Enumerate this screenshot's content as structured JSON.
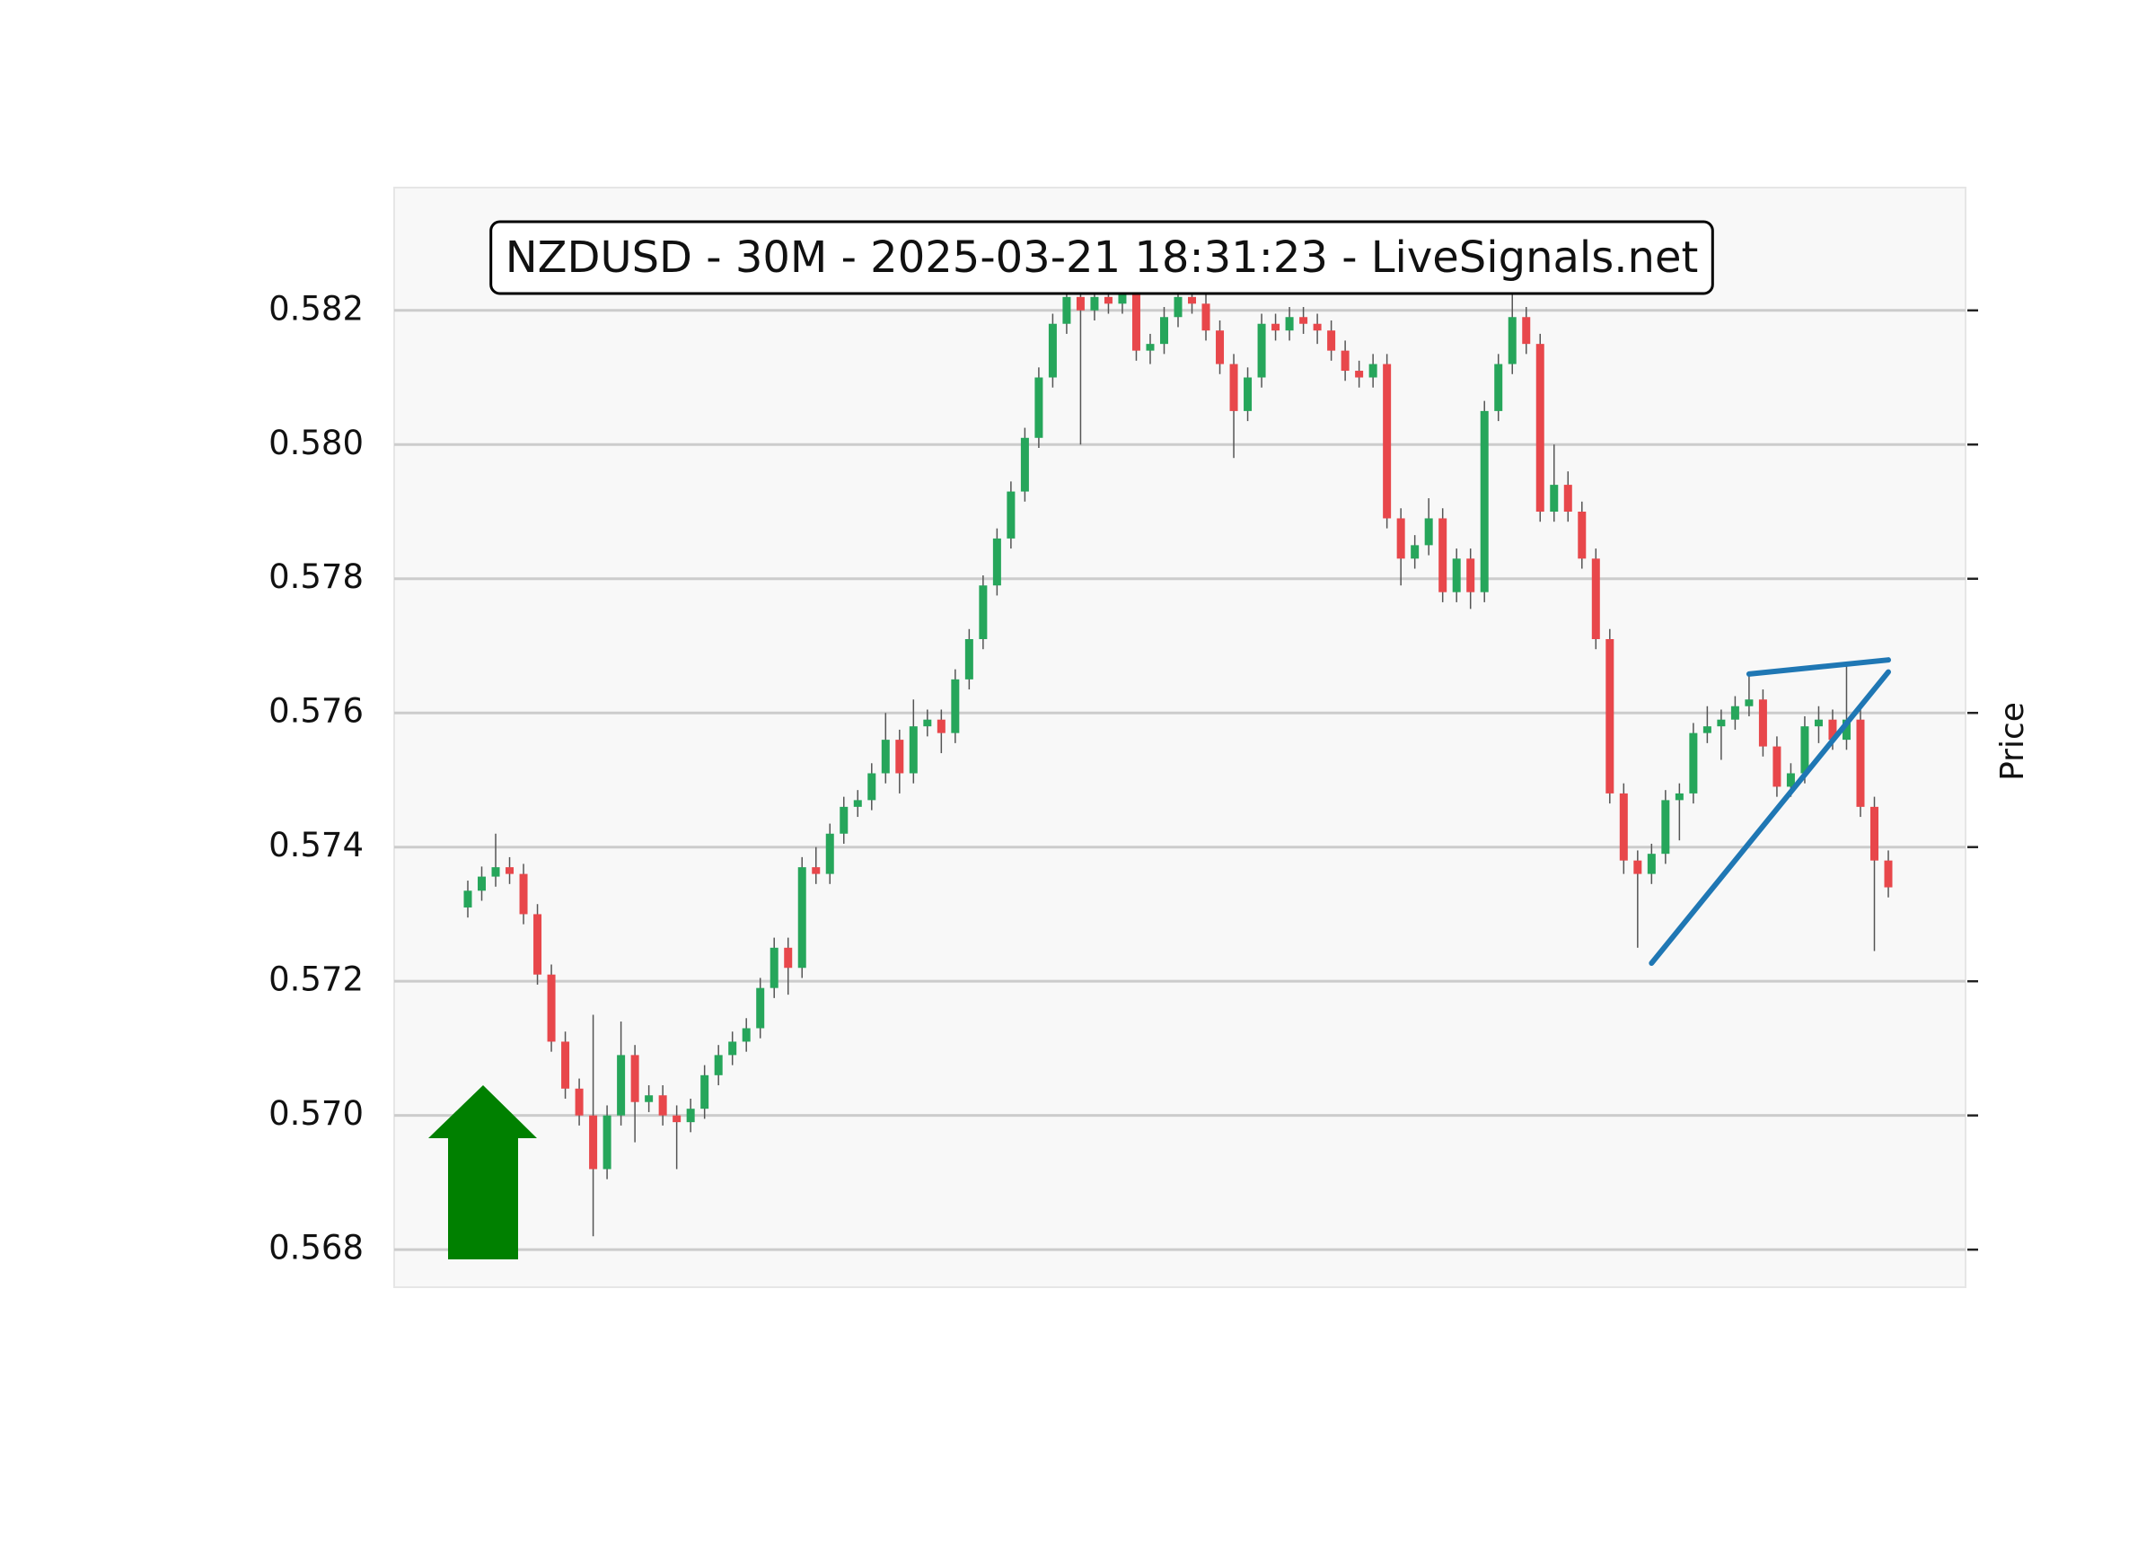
{
  "chart_data": {
    "type": "candlestick",
    "title": "NZDUSD - 30M - 2025-03-21 18:31:23 - LiveSignals.net",
    "y_label": "Price",
    "open": [
      0.5731,
      0.57335,
      0.57356,
      0.5737,
      0.5736,
      0.573,
      0.5721,
      0.5711,
      0.5704,
      0.57,
      0.5692,
      0.57,
      0.5709,
      0.5702,
      0.5703,
      0.57,
      0.5699,
      0.5701,
      0.5706,
      0.5709,
      0.5711,
      0.5713,
      0.5719,
      0.5725,
      0.5722,
      0.5737,
      0.5736,
      0.5742,
      0.5746,
      0.5747,
      0.5751,
      0.5756,
      0.5751,
      0.5758,
      0.5759,
      0.5757,
      0.5765,
      0.5771,
      0.5779,
      0.5786,
      0.5793,
      0.5801,
      0.581,
      0.5818,
      0.5822,
      0.582,
      0.5822,
      0.5821,
      0.5823,
      0.5814,
      0.5815,
      0.5819,
      0.5822,
      0.5821,
      0.5817,
      0.5812,
      0.5805,
      0.581,
      0.5818,
      0.5817,
      0.5819,
      0.5818,
      0.5817,
      0.5814,
      0.5811,
      0.581,
      0.5812,
      0.5789,
      0.5783,
      0.5785,
      0.5789,
      0.5778,
      0.5783,
      0.5778,
      0.5805,
      0.5812,
      0.5819,
      0.5815,
      0.579,
      0.5794,
      0.579,
      0.5783,
      0.5771,
      0.5748,
      0.5738,
      0.5736,
      0.5739,
      0.5747,
      0.5748,
      0.5757,
      0.5758,
      0.5759,
      0.5761,
      0.5762,
      0.5755,
      0.5749,
      0.5751,
      0.5758,
      0.5759,
      0.5756,
      0.5759,
      0.5746,
      0.5738
    ],
    "high": [
      0.5735,
      0.57371,
      0.5742,
      0.57385,
      0.57375,
      0.57315,
      0.57225,
      0.57125,
      0.57055,
      0.5715,
      0.57015,
      0.5714,
      0.57105,
      0.57045,
      0.57045,
      0.57015,
      0.57025,
      0.57075,
      0.57105,
      0.57125,
      0.57145,
      0.57205,
      0.57265,
      0.57265,
      0.57385,
      0.574,
      0.57435,
      0.57475,
      0.57485,
      0.57525,
      0.576,
      0.57575,
      0.5762,
      0.57605,
      0.57605,
      0.57665,
      0.57725,
      0.57805,
      0.57875,
      0.57945,
      0.58025,
      0.58115,
      0.58195,
      0.5825,
      0.58235,
      0.58235,
      0.58235,
      0.58245,
      0.58245,
      0.58165,
      0.58205,
      0.5825,
      0.58235,
      0.58225,
      0.58185,
      0.58135,
      0.58115,
      0.58195,
      0.58195,
      0.58205,
      0.58205,
      0.58195,
      0.58185,
      0.58155,
      0.58125,
      0.58135,
      0.58135,
      0.57905,
      0.57865,
      0.5792,
      0.57905,
      0.57845,
      0.57845,
      0.58065,
      0.58135,
      0.5824,
      0.58205,
      0.58165,
      0.58,
      0.5796,
      0.57915,
      0.57845,
      0.57725,
      0.57495,
      0.57395,
      0.57405,
      0.57485,
      0.57495,
      0.57585,
      0.5761,
      0.57605,
      0.57625,
      0.5766,
      0.57635,
      0.57565,
      0.57525,
      0.57595,
      0.5761,
      0.57605,
      0.5767,
      0.57605,
      0.57475,
      0.57395
    ],
    "low": [
      0.57295,
      0.5732,
      0.57341,
      0.57345,
      0.57285,
      0.57195,
      0.57095,
      0.57025,
      0.56985,
      0.5682,
      0.56905,
      0.56985,
      0.5696,
      0.57005,
      0.56985,
      0.5692,
      0.56975,
      0.56995,
      0.57045,
      0.57075,
      0.57095,
      0.57115,
      0.57175,
      0.5718,
      0.57205,
      0.57345,
      0.57345,
      0.57405,
      0.57445,
      0.57455,
      0.57495,
      0.5748,
      0.57495,
      0.57565,
      0.5754,
      0.57555,
      0.57635,
      0.57695,
      0.57775,
      0.57845,
      0.57915,
      0.57995,
      0.58085,
      0.58165,
      0.58,
      0.58185,
      0.58195,
      0.58195,
      0.58125,
      0.5812,
      0.58135,
      0.58175,
      0.58195,
      0.58155,
      0.58105,
      0.5798,
      0.58035,
      0.58085,
      0.58155,
      0.58155,
      0.58165,
      0.5815,
      0.58125,
      0.58095,
      0.58085,
      0.58085,
      0.57875,
      0.5779,
      0.57815,
      0.57835,
      0.57765,
      0.57765,
      0.57755,
      0.57765,
      0.58035,
      0.58105,
      0.58135,
      0.57885,
      0.57885,
      0.57885,
      0.57815,
      0.57695,
      0.57465,
      0.5736,
      0.5725,
      0.57345,
      0.57375,
      0.5741,
      0.57465,
      0.57555,
      0.5753,
      0.57575,
      0.57595,
      0.57535,
      0.57475,
      0.57475,
      0.57495,
      0.57555,
      0.57545,
      0.57545,
      0.57445,
      0.57245,
      0.57325
    ],
    "close": [
      0.57335,
      0.57356,
      0.5737,
      0.5736,
      0.573,
      0.5721,
      0.5711,
      0.5704,
      0.57,
      0.5692,
      0.57,
      0.5709,
      0.5702,
      0.5703,
      0.57,
      0.5699,
      0.5701,
      0.5706,
      0.5709,
      0.5711,
      0.5713,
      0.5719,
      0.5725,
      0.5722,
      0.5737,
      0.5736,
      0.5742,
      0.5746,
      0.5747,
      0.5751,
      0.5756,
      0.5751,
      0.5758,
      0.5759,
      0.5757,
      0.5765,
      0.5771,
      0.5779,
      0.5786,
      0.5793,
      0.5801,
      0.581,
      0.5818,
      0.5822,
      0.582,
      0.5822,
      0.5821,
      0.5823,
      0.5814,
      0.5815,
      0.5819,
      0.5822,
      0.5821,
      0.5817,
      0.5812,
      0.5805,
      0.581,
      0.5818,
      0.5817,
      0.5819,
      0.5818,
      0.5817,
      0.5814,
      0.5811,
      0.581,
      0.5812,
      0.5789,
      0.5783,
      0.5785,
      0.5789,
      0.5778,
      0.5783,
      0.5778,
      0.5805,
      0.5812,
      0.5819,
      0.5815,
      0.579,
      0.5794,
      0.579,
      0.5783,
      0.5771,
      0.5748,
      0.5738,
      0.5736,
      0.5739,
      0.5747,
      0.5748,
      0.5757,
      0.5758,
      0.5759,
      0.5761,
      0.5762,
      0.5755,
      0.5749,
      0.5751,
      0.5758,
      0.5759,
      0.5756,
      0.5759,
      0.5746,
      0.5738,
      0.5734
    ],
    "up_color": "#26a65b",
    "down_color": "#e8474b",
    "wick_color": "#555555",
    "ylim": [
      0.56744,
      0.58383
    ],
    "yticks": [
      0.568,
      {
        "value": 0.57,
        "label": "0.570"
      },
      0.572,
      0.574,
      0.576,
      0.578,
      {
        "value": 0.58,
        "label": "0.580"
      },
      0.582
    ],
    "grid": true,
    "trendlines": [
      {
        "x": [
          85,
          102
        ],
        "y": [
          0.57227,
          0.57661
        ],
        "color": "#1f77b4"
      },
      {
        "x": [
          92,
          102
        ],
        "y": [
          0.57658,
          0.57679
        ],
        "color": "#1f77b4"
      }
    ]
  }
}
